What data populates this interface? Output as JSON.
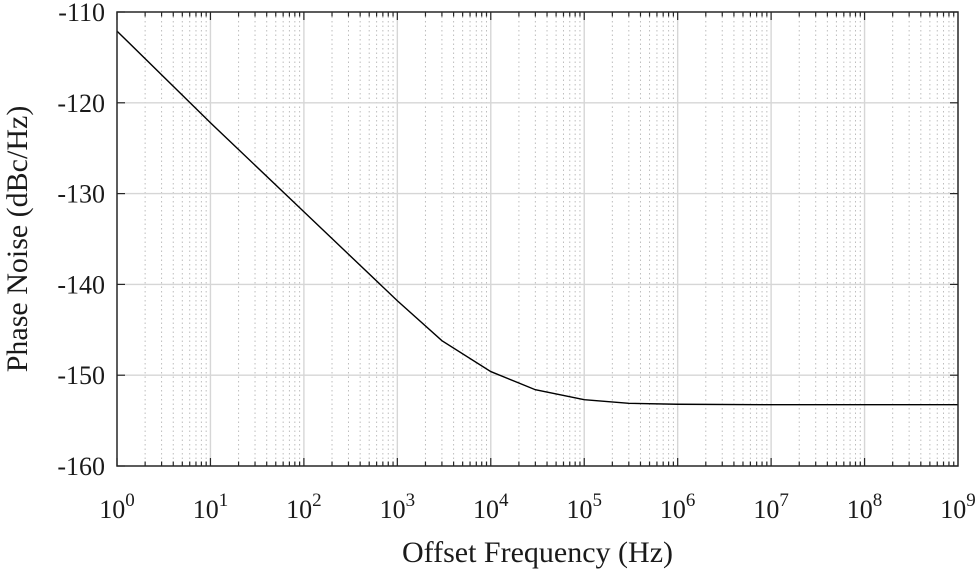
{
  "chart_data": {
    "type": "line",
    "title": "",
    "xlabel": "Offset Frequency (Hz)",
    "ylabel": "Phase Noise (dBc/Hz)",
    "xscale": "log",
    "xlim": [
      1,
      1000000000
    ],
    "ylim": [
      -160,
      -110
    ],
    "grid": true,
    "x_ticks": [
      {
        "base": "10",
        "exp": "0"
      },
      {
        "base": "10",
        "exp": "1"
      },
      {
        "base": "10",
        "exp": "2"
      },
      {
        "base": "10",
        "exp": "3"
      },
      {
        "base": "10",
        "exp": "4"
      },
      {
        "base": "10",
        "exp": "5"
      },
      {
        "base": "10",
        "exp": "6"
      },
      {
        "base": "10",
        "exp": "7"
      },
      {
        "base": "10",
        "exp": "8"
      },
      {
        "base": "10",
        "exp": "9"
      }
    ],
    "y_ticks": [
      "-110",
      "-120",
      "-130",
      "-140",
      "-150",
      "-160"
    ],
    "series": [
      {
        "color": "#000000",
        "x": [
          1,
          10,
          100,
          1000,
          3000,
          10000,
          30000,
          100000,
          300000,
          1000000,
          10000000,
          100000000,
          1000000000
        ],
        "y": [
          -112.1,
          -122.2,
          -132.0,
          -141.8,
          -146.2,
          -149.6,
          -151.6,
          -152.7,
          -153.1,
          -153.2,
          -153.25,
          -153.25,
          -153.25
        ]
      }
    ]
  }
}
